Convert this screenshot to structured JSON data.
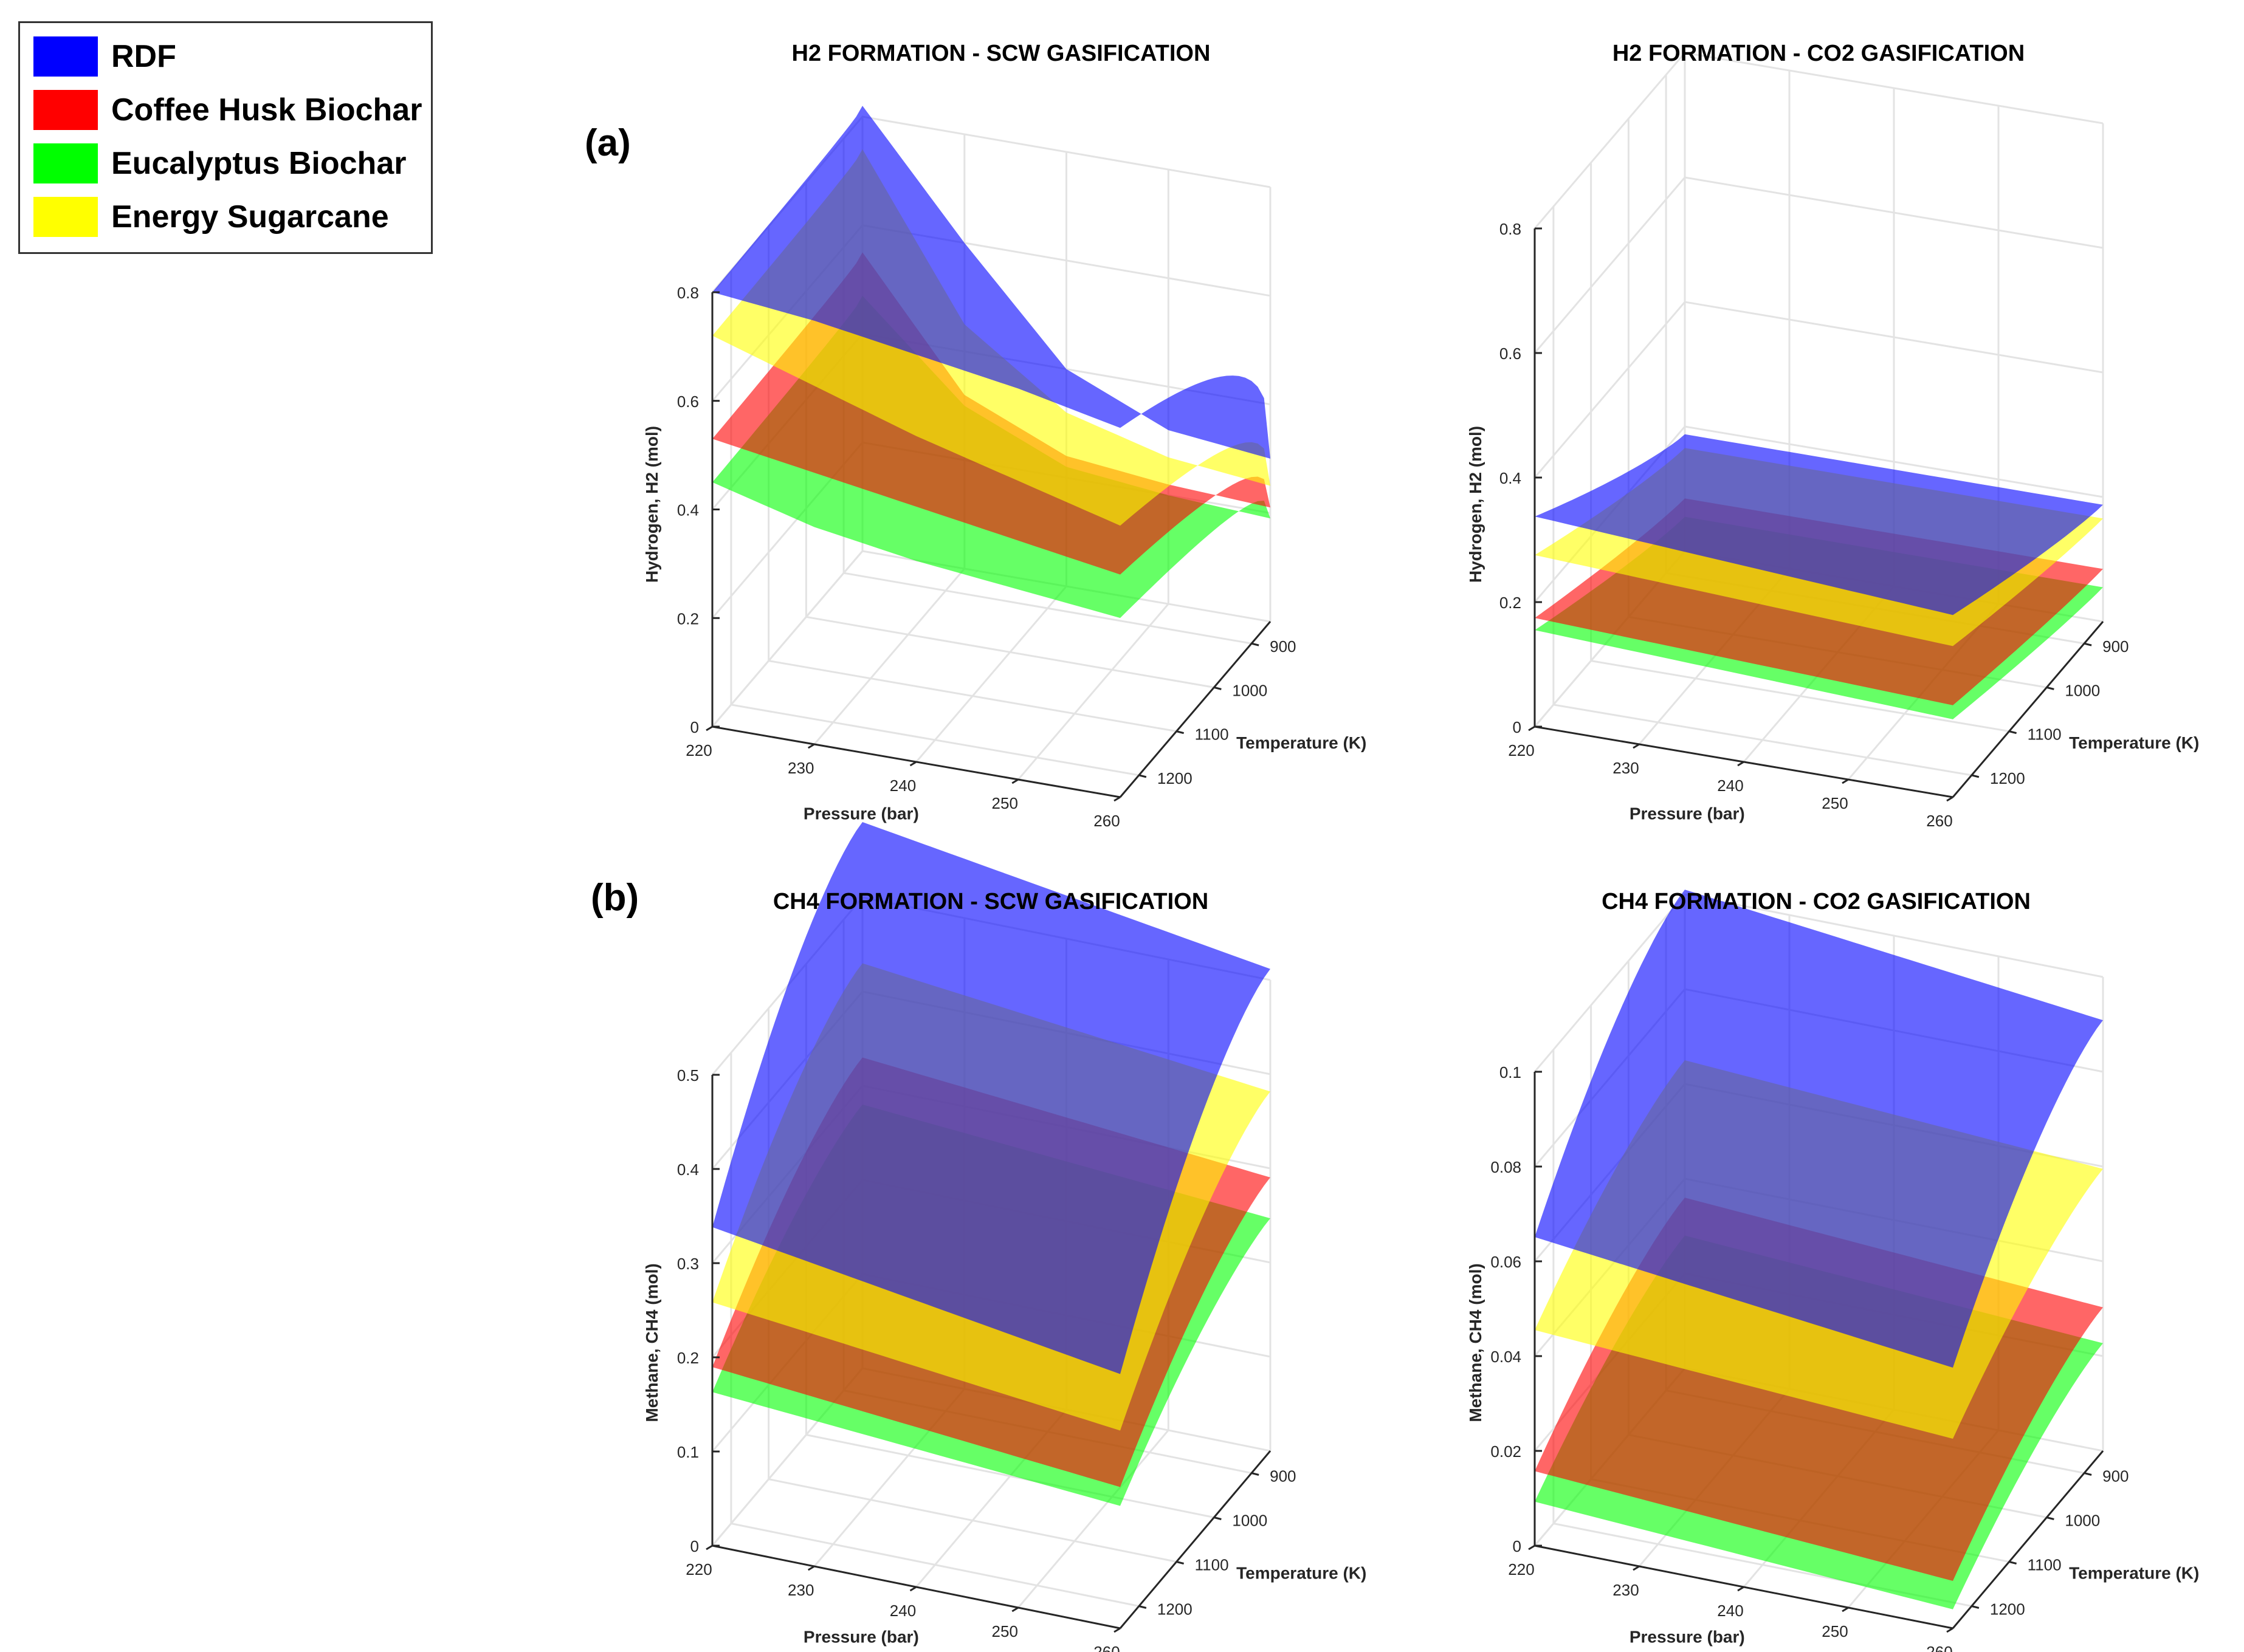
{
  "legend": {
    "items": [
      {
        "label": "RDF",
        "color": "#0000ff"
      },
      {
        "label": "Coffee Husk Biochar",
        "color": "#ff0000"
      },
      {
        "label": "Eucalyptus Biochar",
        "color": "#00ff00"
      },
      {
        "label": "Energy Sugarcane",
        "color": "#ffff00"
      }
    ]
  },
  "panel_labels": {
    "a": "(a)",
    "b": "(b)"
  },
  "chart_data": [
    {
      "type": "surface3d",
      "title": "H2 FORMATION - SCW GASIFICATION",
      "xlabel": "Pressure (bar)",
      "ylabel": "Temperature (K)",
      "zlabel": "Hydrogen, H2 (mol)",
      "xticks": [
        "220",
        "230",
        "240",
        "250",
        "260"
      ],
      "yticks": [
        "900",
        "1000",
        "1100",
        "1200"
      ],
      "zticks": [
        "0",
        "0.2",
        "0.4",
        "0.6",
        "0.8"
      ],
      "xlim": [
        220,
        260
      ],
      "ylim": [
        850,
        1250
      ],
      "zlim": [
        0,
        0.8
      ],
      "series": [
        {
          "name": "RDF",
          "color": "#0000ff",
          "values_at_1250K_vs_T": [
            0.8,
            0.78,
            0.75,
            0.72,
            0.68
          ],
          "values_at_850K_vs_T": [
            0.82,
            0.6,
            0.4,
            0.32,
            0.3
          ]
        },
        {
          "name": "Energy Sugarcane",
          "color": "#ffff00",
          "values_at_1250K_vs_T": [
            0.72,
            0.66,
            0.6,
            0.55,
            0.5
          ],
          "values_at_850K_vs_T": [
            0.74,
            0.45,
            0.32,
            0.27,
            0.25
          ]
        },
        {
          "name": "Coffee Husk Biochar",
          "color": "#ff0000",
          "values_at_1250K_vs_T": [
            0.53,
            0.5,
            0.47,
            0.44,
            0.41
          ],
          "values_at_850K_vs_T": [
            0.55,
            0.32,
            0.24,
            0.22,
            0.21
          ]
        },
        {
          "name": "Eucalyptus Biochar",
          "color": "#00ff00",
          "values_at_1250K_vs_T": [
            0.45,
            0.4,
            0.37,
            0.35,
            0.33
          ],
          "values_at_850K_vs_T": [
            0.47,
            0.3,
            0.22,
            0.2,
            0.19
          ]
        }
      ]
    },
    {
      "type": "surface3d",
      "title": "H2 FORMATION - CO2 GASIFICATION",
      "xlabel": "Pressure (bar)",
      "ylabel": "Temperature (K)",
      "zlabel": "Hydrogen, H2 (mol)",
      "xticks": [
        "220",
        "230",
        "240",
        "250",
        "260"
      ],
      "yticks": [
        "900",
        "1000",
        "1100",
        "1200"
      ],
      "zticks": [
        "0",
        "0.2",
        "0.4",
        "0.6",
        "0.8"
      ],
      "xlim": [
        220,
        260
      ],
      "ylim": [
        850,
        1250
      ],
      "zlim": [
        0,
        0.8
      ],
      "series": [
        {
          "name": "RDF",
          "color": "#0000ff",
          "value_range": [
            0.18,
            0.33
          ]
        },
        {
          "name": "Energy Sugarcane",
          "color": "#ffff00",
          "value_range": [
            0.16,
            0.27
          ]
        },
        {
          "name": "Coffee Husk Biochar",
          "color": "#ff0000",
          "value_range": [
            0.08,
            0.17
          ]
        },
        {
          "name": "Eucalyptus Biochar",
          "color": "#00ff00",
          "value_range": [
            0.05,
            0.15
          ]
        }
      ]
    },
    {
      "type": "surface3d",
      "title": "CH4 FORMATION - SCW GASIFICATION",
      "xlabel": "Pressure (bar)",
      "ylabel": "Temperature (K)",
      "zlabel": "Methane, CH4 (mol)",
      "xticks": [
        "220",
        "230",
        "240",
        "250",
        "260"
      ],
      "yticks": [
        "900",
        "1000",
        "1100",
        "1200"
      ],
      "zticks": [
        "0",
        "0.1",
        "0.2",
        "0.3",
        "0.4",
        "0.5"
      ],
      "xlim": [
        220,
        260
      ],
      "ylim": [
        850,
        1250
      ],
      "zlim": [
        0,
        0.5
      ],
      "series": [
        {
          "name": "RDF",
          "color": "#0000ff",
          "value_range": [
            0.27,
            0.58
          ]
        },
        {
          "name": "Energy Sugarcane",
          "color": "#ffff00",
          "value_range": [
            0.21,
            0.43
          ]
        },
        {
          "name": "Coffee Husk Biochar",
          "color": "#ff0000",
          "value_range": [
            0.15,
            0.33
          ]
        },
        {
          "name": "Eucalyptus Biochar",
          "color": "#00ff00",
          "value_range": [
            0.13,
            0.28
          ]
        }
      ]
    },
    {
      "type": "surface3d",
      "title": "CH4 FORMATION - CO2 GASIFICATION",
      "xlabel": "Pressure (bar)",
      "ylabel": "Temperature (K)",
      "zlabel": "Methane, CH4 (mol)",
      "xticks": [
        "220",
        "230",
        "240",
        "250",
        "260"
      ],
      "yticks": [
        "900",
        "1000",
        "1100",
        "1200"
      ],
      "zticks": [
        "0",
        "0.02",
        "0.04",
        "0.06",
        "0.08",
        "0.1"
      ],
      "xlim": [
        220,
        260
      ],
      "ylim": [
        850,
        1250
      ],
      "zlim": [
        0,
        0.1
      ],
      "series": [
        {
          "name": "RDF",
          "color": "#0000ff",
          "value_range": [
            0.055,
            0.101
          ]
        },
        {
          "name": "Energy Sugarcane",
          "color": "#ffff00",
          "value_range": [
            0.04,
            0.065
          ]
        },
        {
          "name": "Coffee Husk Biochar",
          "color": "#ff0000",
          "value_range": [
            0.01,
            0.036
          ]
        },
        {
          "name": "Eucalyptus Biochar",
          "color": "#00ff00",
          "value_range": [
            0.004,
            0.028
          ]
        }
      ]
    }
  ]
}
